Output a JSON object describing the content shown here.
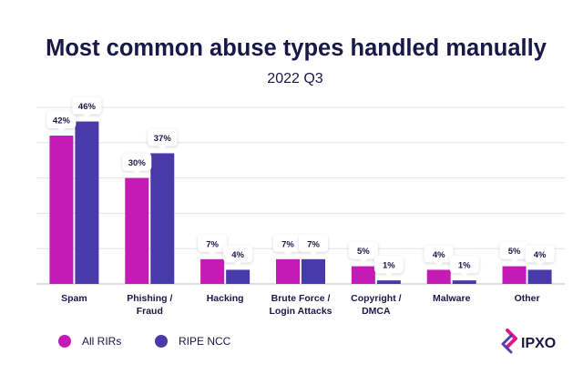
{
  "chart_data": {
    "type": "bar",
    "title": "Most common abuse types handled manually",
    "subtitle": "2022 Q3",
    "categories": [
      [
        "Spam"
      ],
      [
        "Phishing /",
        "Fraud"
      ],
      [
        "Hacking"
      ],
      [
        "Brute Force /",
        "Login Attacks"
      ],
      [
        "Copyright /",
        "DMCA"
      ],
      [
        "Malware"
      ],
      [
        "Other"
      ]
    ],
    "series": [
      {
        "name": "All RIRs",
        "color": "#c41bb4",
        "values": [
          42,
          30,
          7,
          7,
          5,
          4,
          5
        ]
      },
      {
        "name": "RIPE NCC",
        "color": "#4a39a8",
        "values": [
          46,
          37,
          4,
          7,
          1,
          1,
          4
        ]
      }
    ],
    "value_suffix": "%",
    "ylim": [
      0,
      50
    ],
    "grid": true,
    "legend_position": "bottom-left"
  },
  "branding": {
    "logo_text": "IPXO",
    "colors": {
      "magenta": "#e0168e",
      "navy": "#1b1747"
    }
  }
}
